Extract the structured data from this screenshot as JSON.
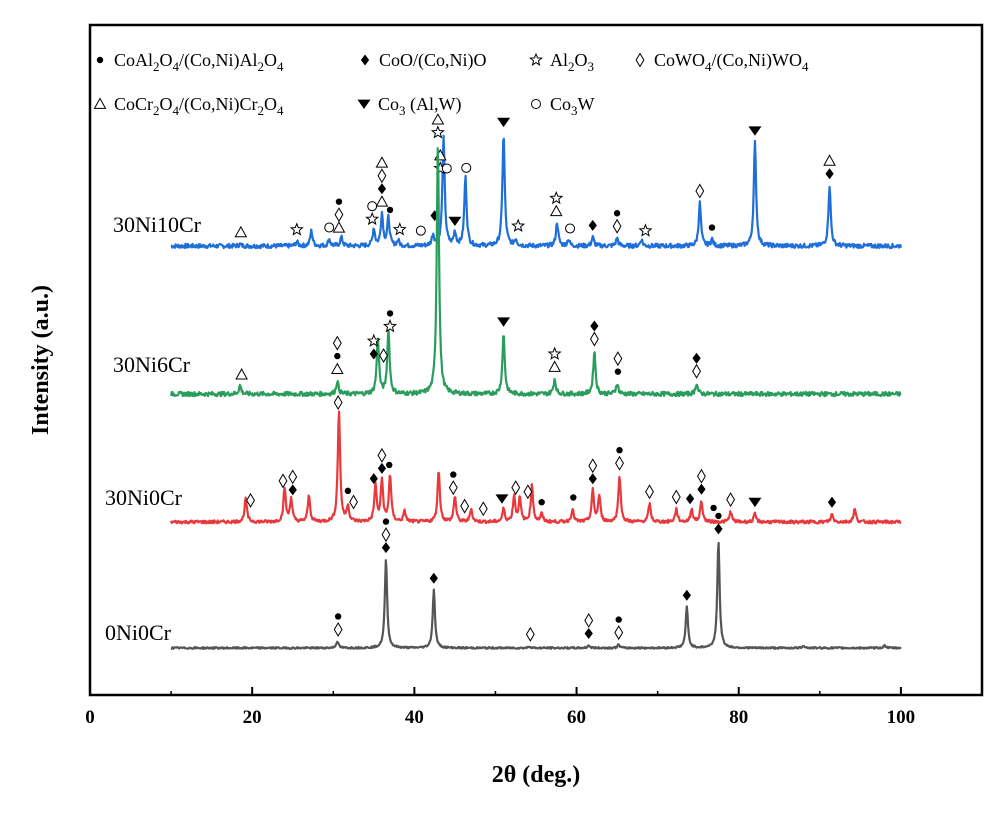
{
  "chart_data": {
    "type": "line",
    "xlabel": "2θ (deg.)",
    "ylabel": "Intensity (a.u.)",
    "xlim": [
      0,
      110
    ],
    "x_ticks": [
      0,
      20,
      40,
      60,
      80,
      100
    ],
    "x_range_data": [
      10,
      100
    ],
    "grid": false,
    "legend": [
      {
        "symbol": "filled-circle",
        "label_parts": [
          [
            "CoAl",
            ""
          ],
          [
            "2",
            "sub"
          ],
          [
            "O",
            ""
          ],
          [
            "4",
            "sub"
          ],
          [
            "/(Co,Ni)Al",
            ""
          ],
          [
            "2",
            "sub"
          ],
          [
            "O",
            ""
          ],
          [
            "4",
            "sub"
          ]
        ]
      },
      {
        "symbol": "filled-diamond",
        "label_parts": [
          [
            "CoO/(Co,Ni)O",
            ""
          ]
        ]
      },
      {
        "symbol": "star",
        "label_parts": [
          [
            "Al",
            ""
          ],
          [
            "2",
            "sub"
          ],
          [
            "O",
            ""
          ],
          [
            "3",
            "sub"
          ]
        ]
      },
      {
        "symbol": "open-diamond",
        "label_parts": [
          [
            "CoWO",
            ""
          ],
          [
            "4",
            "sub"
          ],
          [
            "/(Co,Ni)WO",
            ""
          ],
          [
            "4",
            "sub"
          ]
        ]
      },
      {
        "symbol": "open-triangle",
        "label_parts": [
          [
            "CoCr",
            ""
          ],
          [
            "2",
            "sub"
          ],
          [
            "O",
            ""
          ],
          [
            "4",
            "sub"
          ],
          [
            "/(Co,Ni)Cr",
            ""
          ],
          [
            "2",
            "sub"
          ],
          [
            "O",
            ""
          ],
          [
            "4",
            "sub"
          ]
        ]
      },
      {
        "symbol": "filled-triangle-down",
        "label_parts": [
          [
            "Co",
            ""
          ],
          [
            "3",
            "sub"
          ],
          [
            " (Al,W)",
            ""
          ]
        ]
      },
      {
        "symbol": "open-circle",
        "label_parts": [
          [
            "Co",
            ""
          ],
          [
            "3",
            "sub"
          ],
          [
            "W",
            ""
          ]
        ]
      }
    ],
    "series": [
      {
        "name": "30Ni10Cr",
        "color": "#1f6fd8",
        "baseline": 5,
        "noise": 0.5,
        "peaks": [
          [
            18.5,
            0.4
          ],
          [
            25.5,
            1.0
          ],
          [
            27.3,
            3.5
          ],
          [
            29.5,
            1.5
          ],
          [
            31,
            2.0
          ],
          [
            35,
            4
          ],
          [
            36,
            7.5
          ],
          [
            36.8,
            6.5
          ],
          [
            38,
            1.2
          ],
          [
            42.3,
            2.5
          ],
          [
            43.6,
            25
          ],
          [
            45,
            3
          ],
          [
            46.3,
            16
          ],
          [
            51,
            26
          ],
          [
            52.5,
            1.5
          ],
          [
            57.6,
            5.5
          ],
          [
            59,
            1.5
          ],
          [
            62,
            2
          ],
          [
            65,
            1.8
          ],
          [
            68,
            1.5
          ],
          [
            75.2,
            10
          ],
          [
            76.7,
            1.5
          ],
          [
            82,
            24
          ],
          [
            91.2,
            14
          ]
        ],
        "markers": [
          {
            "x": 18.6,
            "stack": [
              "open-triangle"
            ]
          },
          {
            "x": 25.5,
            "stack": [
              "star"
            ]
          },
          {
            "x": 29.5,
            "stack": [
              "open-circle"
            ]
          },
          {
            "x": 30.7,
            "stack": [
              "filled-circle",
              "open-diamond",
              "open-triangle"
            ]
          },
          {
            "x": 34.8,
            "stack": [
              "open-circle",
              "star"
            ]
          },
          {
            "x": 36,
            "stack": [
              "open-triangle",
              "open-diamond",
              "filled-diamond",
              "open-triangle"
            ]
          },
          {
            "x": 37,
            "stack": [
              "filled-circle"
            ]
          },
          {
            "x": 38.2,
            "stack": [
              "star"
            ]
          },
          {
            "x": 40.8,
            "stack": [
              "open-circle"
            ]
          },
          {
            "x": 42.5,
            "stack": [
              "filled-diamond"
            ]
          },
          {
            "x": 43.2,
            "stack": [
              "open-triangle",
              "star"
            ]
          },
          {
            "x": 44,
            "stack": [
              "open-circle"
            ]
          },
          {
            "x": 45,
            "stack": [
              "filled-triangle-down"
            ]
          },
          {
            "x": 46.4,
            "stack": [
              "open-circle"
            ]
          },
          {
            "x": 51,
            "stack": [
              "filled-triangle-down"
            ]
          },
          {
            "x": 52.8,
            "stack": [
              "star"
            ]
          },
          {
            "x": 57.5,
            "stack": [
              "star",
              "open-triangle"
            ]
          },
          {
            "x": 59.2,
            "stack": [
              "open-circle"
            ]
          },
          {
            "x": 62,
            "stack": [
              "filled-diamond"
            ]
          },
          {
            "x": 65,
            "stack": [
              "filled-circle",
              "open-diamond"
            ]
          },
          {
            "x": 68.5,
            "stack": [
              "star"
            ]
          },
          {
            "x": 75.2,
            "stack": [
              "open-diamond"
            ]
          },
          {
            "x": 76.7,
            "stack": [
              "filled-circle"
            ]
          },
          {
            "x": 82,
            "stack": [
              "filled-triangle-down"
            ]
          },
          {
            "x": 91.2,
            "stack": [
              "open-triangle",
              "filled-diamond"
            ]
          }
        ]
      },
      {
        "name": "30Ni6Cr",
        "color": "#2a9d5c",
        "baseline": 5,
        "noise": 0.5,
        "peaks": [
          [
            18.5,
            2
          ],
          [
            30.5,
            3
          ],
          [
            35.5,
            13
          ],
          [
            36.8,
            15
          ],
          [
            42.9,
            58
          ],
          [
            51,
            14
          ],
          [
            57.3,
            3.5
          ],
          [
            62.2,
            10
          ],
          [
            65,
            2.5
          ],
          [
            74.8,
            2.5
          ]
        ],
        "markers": [
          {
            "x": 18.7,
            "stack": [
              "open-triangle"
            ]
          },
          {
            "x": 30.5,
            "stack": [
              "open-diamond",
              "filled-circle",
              "open-triangle"
            ]
          },
          {
            "x": 35,
            "stack": [
              "star",
              "filled-diamond"
            ]
          },
          {
            "x": 36.2,
            "stack": [
              "open-diamond"
            ]
          },
          {
            "x": 37,
            "stack": [
              "filled-circle",
              "star"
            ]
          },
          {
            "x": 42.9,
            "stack": [
              "open-triangle",
              "star"
            ]
          },
          {
            "x": 51,
            "stack": [
              "filled-triangle-down"
            ]
          },
          {
            "x": 57.3,
            "stack": [
              "star",
              "open-triangle"
            ]
          },
          {
            "x": 62.2,
            "stack": [
              "filled-diamond",
              "open-diamond"
            ]
          },
          {
            "x": 65.1,
            "stack": [
              "open-diamond",
              "filled-circle"
            ]
          },
          {
            "x": 74.8,
            "stack": [
              "filled-diamond",
              "open-diamond"
            ]
          }
        ]
      },
      {
        "name": "30Ni0Cr",
        "color": "#e8393d",
        "baseline": 6,
        "noise": 0.6,
        "peaks": [
          [
            19.2,
            9
          ],
          [
            24,
            13
          ],
          [
            24.8,
            9
          ],
          [
            27,
            10
          ],
          [
            30.7,
            43
          ],
          [
            31.8,
            6
          ],
          [
            35.2,
            14
          ],
          [
            36,
            16
          ],
          [
            37,
            18
          ],
          [
            38.8,
            4
          ],
          [
            43,
            20
          ],
          [
            45,
            10
          ],
          [
            47,
            5
          ],
          [
            51,
            5
          ],
          [
            52.3,
            10
          ],
          [
            53,
            9
          ],
          [
            54.5,
            14
          ],
          [
            55.7,
            3
          ],
          [
            59.5,
            5
          ],
          [
            62,
            12
          ],
          [
            62.8,
            10
          ],
          [
            65.3,
            18
          ],
          [
            69,
            7
          ],
          [
            72.3,
            5
          ],
          [
            74.2,
            5
          ],
          [
            75.4,
            8
          ],
          [
            79,
            4
          ],
          [
            82,
            3
          ],
          [
            91.5,
            3
          ],
          [
            94.3,
            5
          ]
        ],
        "markers": [
          {
            "x": 19.8,
            "stack": [
              "open-diamond"
            ]
          },
          {
            "x": 23.8,
            "stack": [
              "open-diamond"
            ]
          },
          {
            "x": 25,
            "stack": [
              "open-diamond",
              "filled-diamond"
            ]
          },
          {
            "x": 30.6,
            "stack": [
              "open-diamond"
            ]
          },
          {
            "x": 31.8,
            "stack": [
              "filled-circle"
            ]
          },
          {
            "x": 32.5,
            "stack": [
              "open-diamond"
            ]
          },
          {
            "x": 35,
            "stack": [
              "filled-diamond"
            ]
          },
          {
            "x": 36,
            "stack": [
              "open-diamond",
              "filled-diamond"
            ]
          },
          {
            "x": 36.9,
            "stack": [
              "filled-circle"
            ]
          },
          {
            "x": 44.8,
            "stack": [
              "filled-circle",
              "open-diamond"
            ]
          },
          {
            "x": 46.2,
            "stack": [
              "open-diamond"
            ]
          },
          {
            "x": 48.5,
            "stack": [
              "open-diamond"
            ]
          },
          {
            "x": 50.8,
            "stack": [
              "filled-triangle-down"
            ]
          },
          {
            "x": 52.5,
            "stack": [
              "open-diamond"
            ]
          },
          {
            "x": 54,
            "stack": [
              "open-diamond"
            ]
          },
          {
            "x": 55.7,
            "stack": [
              "filled-circle"
            ]
          },
          {
            "x": 59.6,
            "stack": [
              "filled-circle"
            ]
          },
          {
            "x": 62,
            "stack": [
              "open-diamond",
              "filled-diamond"
            ]
          },
          {
            "x": 65.3,
            "stack": [
              "filled-circle",
              "open-diamond"
            ]
          },
          {
            "x": 69,
            "stack": [
              "open-diamond"
            ]
          },
          {
            "x": 72.3,
            "stack": [
              "open-diamond"
            ]
          },
          {
            "x": 74,
            "stack": [
              "filled-diamond"
            ]
          },
          {
            "x": 75.4,
            "stack": [
              "open-diamond",
              "filled-diamond"
            ]
          },
          {
            "x": 76.9,
            "stack": [
              "filled-circle"
            ]
          },
          {
            "x": 79,
            "stack": [
              "open-diamond"
            ]
          },
          {
            "x": 82,
            "stack": [
              "filled-triangle-down"
            ]
          },
          {
            "x": 91.5,
            "stack": [
              "filled-diamond"
            ]
          }
        ]
      },
      {
        "name": "0Ni0Cr",
        "color": "#555555",
        "baseline": 4,
        "noise": 0.5,
        "peaks": [
          [
            30.5,
            4
          ],
          [
            36.5,
            52
          ],
          [
            42.4,
            34
          ],
          [
            54.2,
            1
          ],
          [
            61.5,
            1.5
          ],
          [
            65.2,
            2
          ],
          [
            73.6,
            24
          ],
          [
            77.5,
            63
          ],
          [
            88,
            1.5
          ],
          [
            98,
            1.5
          ]
        ],
        "markers": [
          {
            "x": 30.6,
            "stack": [
              "filled-circle",
              "open-diamond"
            ]
          },
          {
            "x": 36.5,
            "stack": [
              "filled-circle",
              "open-diamond",
              "filled-diamond"
            ]
          },
          {
            "x": 42.4,
            "stack": [
              "filled-diamond"
            ]
          },
          {
            "x": 54.3,
            "stack": [
              "open-diamond"
            ]
          },
          {
            "x": 61.5,
            "stack": [
              "open-diamond",
              "filled-diamond"
            ]
          },
          {
            "x": 65.2,
            "stack": [
              "filled-circle",
              "open-diamond"
            ]
          },
          {
            "x": 73.6,
            "stack": [
              "filled-diamond"
            ]
          },
          {
            "x": 77.5,
            "stack": [
              "filled-circle",
              "filled-diamond"
            ]
          }
        ]
      }
    ]
  }
}
